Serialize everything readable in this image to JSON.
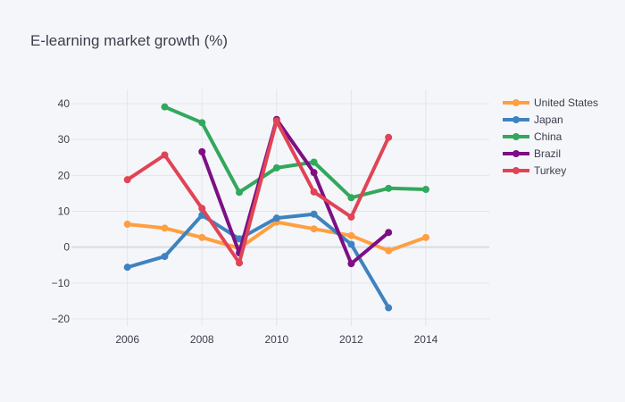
{
  "chart_data": {
    "type": "line",
    "title": "E-learning market growth (%)",
    "xlabel": "",
    "ylabel": "",
    "xlim": [
      2004.5,
      2015.7
    ],
    "ylim": [
      -22,
      44
    ],
    "x_ticks": [
      2006,
      2008,
      2010,
      2012,
      2014
    ],
    "y_ticks": [
      -20,
      -10,
      0,
      10,
      20,
      30,
      40
    ],
    "grid": true,
    "legend_position": "top-right",
    "series": [
      {
        "name": "United States",
        "color": "#ff9f40",
        "x": [
          2006,
          2007,
          2008,
          2009,
          2010,
          2011,
          2012,
          2013,
          2014
        ],
        "y": [
          6.4,
          5.3,
          2.7,
          -0.3,
          7.0,
          5.1,
          3.2,
          -1.0,
          2.7
        ]
      },
      {
        "name": "Japan",
        "color": "#3e83c0",
        "x": [
          2006,
          2007,
          2008,
          2009,
          2010,
          2011,
          2012,
          2013
        ],
        "y": [
          -5.6,
          -2.6,
          8.9,
          2.3,
          8.1,
          9.2,
          0.8,
          -16.9
        ]
      },
      {
        "name": "China",
        "color": "#32a85c",
        "x": [
          2007,
          2008,
          2009,
          2010,
          2011,
          2012,
          2013,
          2014
        ],
        "y": [
          39.1,
          34.7,
          15.3,
          22.1,
          23.7,
          13.8,
          16.4,
          16.1
        ]
      },
      {
        "name": "Brazil",
        "color": "#7d0f85",
        "x": [
          2008,
          2009,
          2010,
          2011,
          2012,
          2013
        ],
        "y": [
          26.6,
          -1.6,
          35.6,
          20.8,
          -4.6,
          4.1
        ]
      },
      {
        "name": "Turkey",
        "color": "#e04455",
        "x": [
          2006,
          2007,
          2008,
          2009,
          2010,
          2011,
          2012,
          2013
        ],
        "y": [
          18.8,
          25.7,
          10.8,
          -4.4,
          35.2,
          15.4,
          8.4,
          30.6
        ]
      }
    ]
  }
}
